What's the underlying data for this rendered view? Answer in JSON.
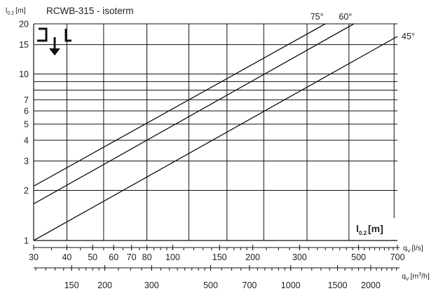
{
  "chart_data": {
    "type": "line",
    "title": "RCWB-315 - isoterm",
    "y_axis": {
      "label_main": "l",
      "label_sub": "0.2",
      "label_unit": "[m]",
      "scale": "log",
      "range": [
        1,
        20
      ],
      "gridlines": [
        1,
        2,
        3,
        4,
        5,
        6,
        7,
        8,
        9,
        10,
        15,
        20
      ],
      "tick_labels": [
        "1",
        "2",
        "3",
        "4",
        "5",
        "6",
        "7",
        "10",
        "15",
        "20"
      ]
    },
    "x_axis": {
      "scale": "log",
      "range": [
        30,
        700
      ],
      "label_main": "q",
      "label_sub": "V",
      "label_unit": "[l/s]",
      "gridlines": [
        40,
        55,
        80,
        115,
        160,
        220,
        320,
        460,
        680
      ],
      "tick_labels": [
        "30",
        "40",
        "50",
        "60",
        "70",
        "80",
        "100",
        "150",
        "200",
        "300",
        "500",
        "700"
      ]
    },
    "x2_axis": {
      "label_main": "q",
      "label_sub": "V",
      "label_unit_pre": "[m",
      "label_unit_sup": "3",
      "label_unit_post": "/h]",
      "factor": 3.6,
      "tick_labels": [
        "150",
        "200",
        "300",
        "500",
        "700",
        "1000",
        "1500",
        "2000"
      ]
    },
    "series": [
      {
        "name": "75°",
        "x": [
          30,
          375
        ],
        "y": [
          2.12,
          20
        ]
      },
      {
        "name": "60°",
        "x": [
          30,
          480
        ],
        "y": [
          1.66,
          20
        ]
      },
      {
        "name": "45°",
        "x": [
          30,
          700
        ],
        "y": [
          1,
          16.8
        ]
      }
    ],
    "box_label": {
      "main": "l",
      "sub": "0.2",
      "unit": "[m]"
    },
    "grid": true,
    "legend": "none"
  }
}
